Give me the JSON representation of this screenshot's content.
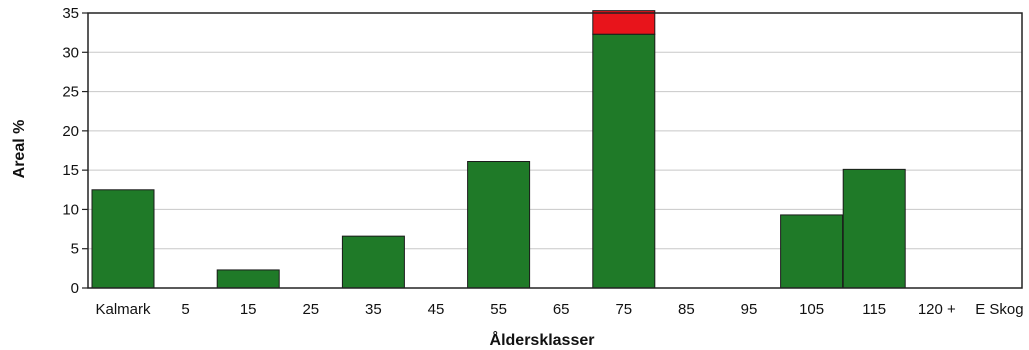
{
  "chart_data": {
    "type": "bar",
    "stacked": true,
    "title": "",
    "xlabel": "Åldersklasser",
    "ylabel": "Areal %",
    "ylim": [
      0,
      35
    ],
    "yticks": [
      0,
      5,
      10,
      15,
      20,
      25,
      30,
      35
    ],
    "grid": true,
    "legend": "none",
    "categories": [
      "Kalmark",
      "5",
      "15",
      "25",
      "35",
      "45",
      "55",
      "65",
      "75",
      "85",
      "95",
      "105",
      "115",
      "120 +",
      "E Skog"
    ],
    "series": [
      {
        "color": "#1f7a28",
        "values": [
          12.5,
          0,
          2.3,
          0,
          6.6,
          0,
          16.1,
          0,
          32.3,
          0,
          0,
          9.3,
          15.1,
          0,
          0
        ]
      },
      {
        "color": "#e8141b",
        "values": [
          0,
          0,
          0,
          0,
          0,
          0,
          0,
          0,
          3.0,
          0,
          0,
          0,
          0,
          0,
          0
        ]
      }
    ]
  }
}
